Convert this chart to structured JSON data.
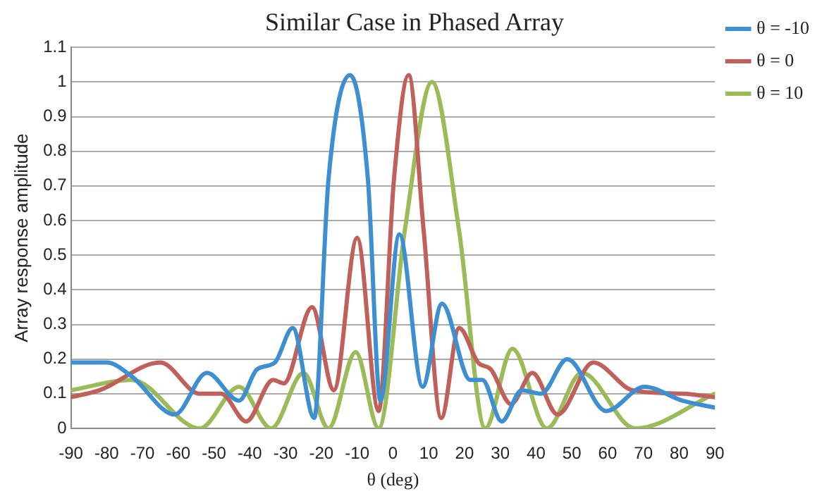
{
  "chart_data": {
    "type": "line",
    "title": "Similar Case in Phased Array",
    "xlabel": "θ (deg)",
    "ylabel": "Array response amplitude",
    "xlim": [
      -90,
      90
    ],
    "xticks": [
      -90,
      -80,
      -70,
      -60,
      -50,
      -40,
      -30,
      -20,
      -10,
      0,
      10,
      20,
      30,
      40,
      50,
      60,
      70,
      80,
      90
    ],
    "ylim": [
      0,
      1.1
    ],
    "yticks": [
      0,
      0.1,
      0.2,
      0.3,
      0.4,
      0.5,
      0.6,
      0.7,
      0.8,
      0.9,
      1,
      1.1
    ],
    "grid": "y",
    "legend": "top right",
    "marker": "none",
    "line_style": "solid",
    "series": [
      {
        "name": "θ = -10",
        "color": "#3d8fd1",
        "x": [
          -90,
          -80,
          -73,
          -61,
          -52,
          -43,
          -38,
          -33,
          -28,
          -22,
          -18,
          -12,
          -7,
          -3.5,
          1.8,
          8.3,
          13.7,
          21.6,
          25,
          30.4,
          36,
          41.4,
          48.7,
          59.6,
          70.3,
          80.9,
          90
        ],
        "values": [
          0.19,
          0.19,
          0.15,
          0.04,
          0.16,
          0.08,
          0.17,
          0.19,
          0.29,
          0.03,
          0.72,
          1.02,
          0.72,
          0.08,
          0.56,
          0.12,
          0.36,
          0.14,
          0.14,
          0.02,
          0.11,
          0.1,
          0.2,
          0.05,
          0.12,
          0.08,
          0.06
        ]
      },
      {
        "name": "θ = 0",
        "color": "#c0605a",
        "x": [
          -90,
          -82,
          -65,
          -54,
          -48,
          -41,
          -33.5,
          -30.5,
          -22.6,
          -16.5,
          -10,
          -4,
          0.3,
          4.4,
          8.6,
          13.5,
          18.5,
          23.8,
          27.4,
          33,
          39,
          46,
          56,
          67,
          81,
          90
        ],
        "values": [
          0.09,
          0.11,
          0.19,
          0.1,
          0.1,
          0.02,
          0.14,
          0.13,
          0.35,
          0.11,
          0.55,
          0.05,
          0.72,
          1.02,
          0.57,
          0.03,
          0.29,
          0.19,
          0.17,
          0.07,
          0.16,
          0.04,
          0.19,
          0.11,
          0.1,
          0.09
        ]
      },
      {
        "name": "θ = 10",
        "color": "#9bbb59",
        "x": [
          -90,
          -73,
          -54,
          -43,
          -34,
          -25,
          -18,
          -10.4,
          -4,
          3.3,
          10.9,
          18.5,
          25.8,
          33.4,
          43,
          52.8,
          67.7,
          90
        ],
        "values": [
          0.11,
          0.14,
          0,
          0.12,
          0,
          0.16,
          0,
          0.22,
          0,
          0.57,
          1,
          0.57,
          0,
          0.23,
          0,
          0.16,
          0,
          0.1
        ]
      }
    ]
  }
}
